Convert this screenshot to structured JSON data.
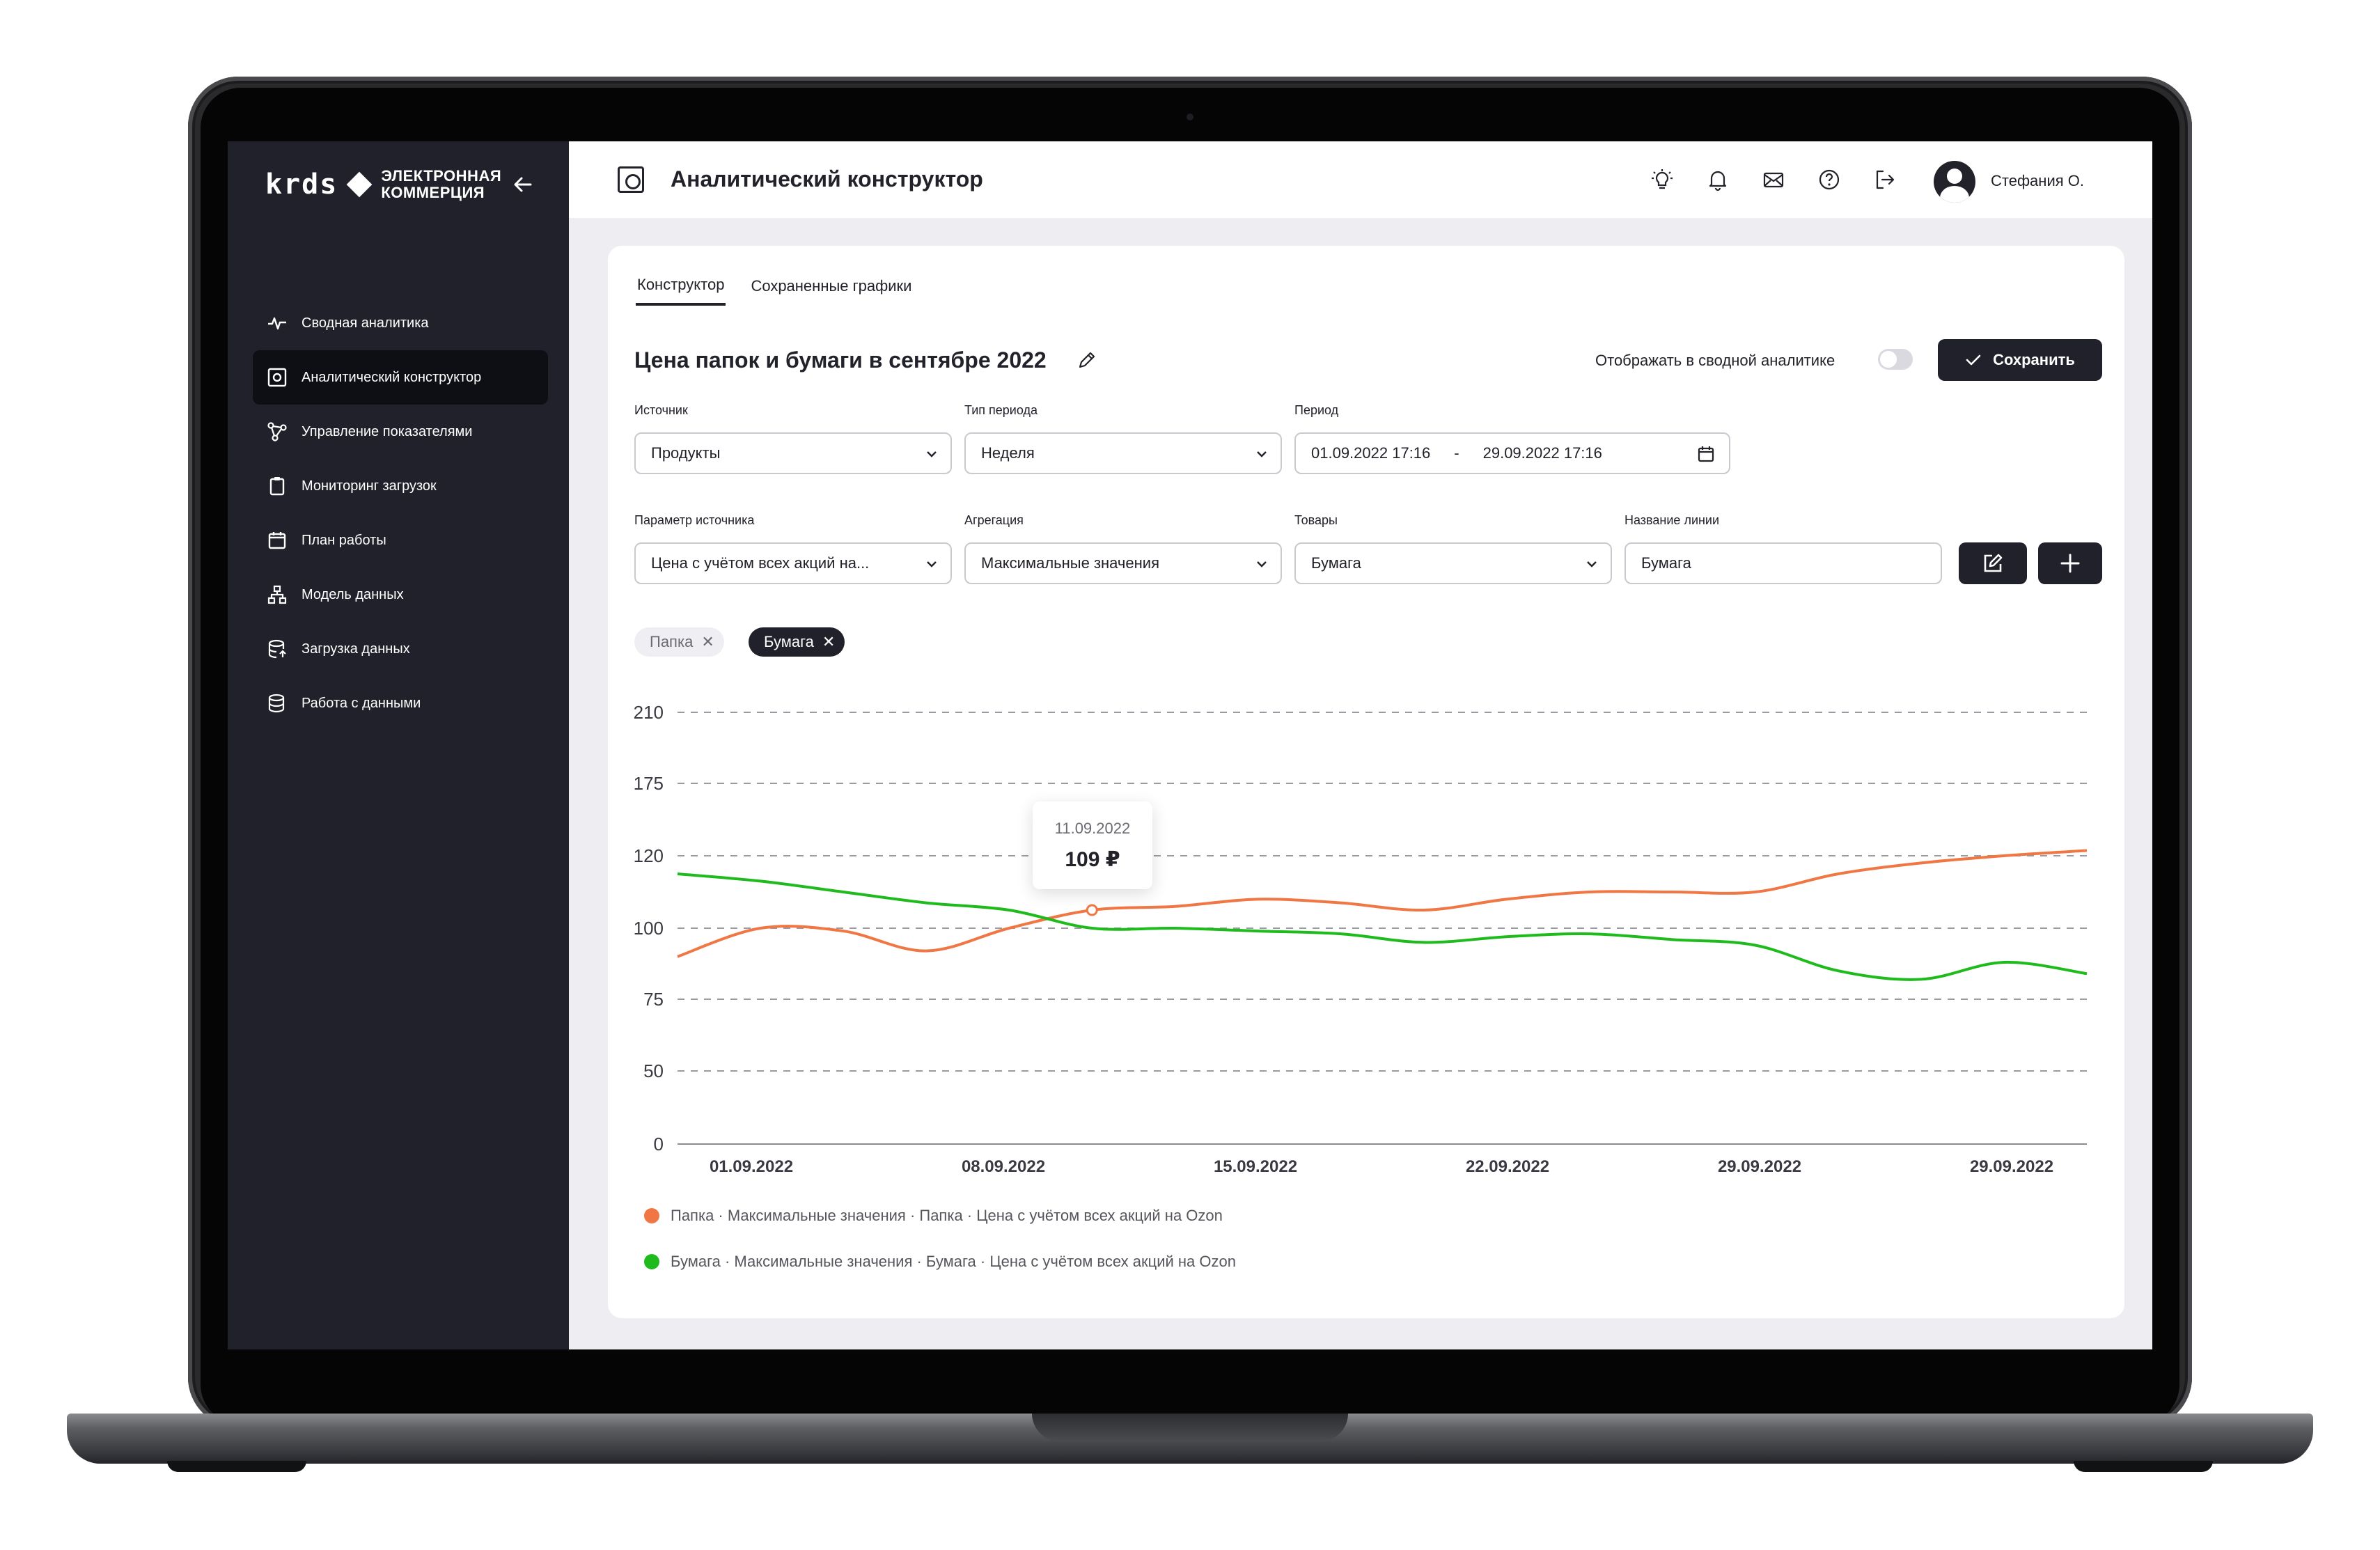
{
  "app": {
    "logo_mark": "krds",
    "logo_line1": "ЭЛЕКТРОННАЯ",
    "logo_line2": "КОММЕРЦИЯ"
  },
  "sidebar": {
    "items": [
      {
        "label": "Сводная аналитика",
        "icon": "activity-icon"
      },
      {
        "label": "Аналитический конструктор",
        "icon": "constructor-icon",
        "active": true
      },
      {
        "label": "Управление показателями",
        "icon": "nodes-icon"
      },
      {
        "label": "Мониторинг загрузок",
        "icon": "clipboard-icon"
      },
      {
        "label": "План работы",
        "icon": "calendar-icon"
      },
      {
        "label": "Модель данных",
        "icon": "hierarchy-icon"
      },
      {
        "label": "Загрузка данных",
        "icon": "database-upload-icon"
      },
      {
        "label": "Работа с данными",
        "icon": "database-icon"
      }
    ]
  },
  "header": {
    "title": "Аналитический конструктор",
    "icons": [
      "lightbulb-icon",
      "bell-icon",
      "mail-icon",
      "help-icon",
      "logout-icon"
    ],
    "user_name": "Стефания О."
  },
  "tabs": [
    {
      "label": "Конструктор",
      "active": true
    },
    {
      "label": "Сохраненные графики",
      "active": false
    }
  ],
  "editor": {
    "chart_title": "Цена папок и бумаги в сентябре 2022",
    "toggle_label": "Отображать в сводной аналитике",
    "toggle_on": false,
    "save_label": "Сохранить"
  },
  "filters": {
    "source": {
      "label": "Источник",
      "value": "Продукты"
    },
    "period_type": {
      "label": "Тип периода",
      "value": "Неделя"
    },
    "period": {
      "label": "Период",
      "from": "01.09.2022 17:16",
      "separator": "-",
      "to": "29.09.2022 17:16"
    },
    "source_param": {
      "label": "Параметр источника",
      "value": "Цена с учётом всех акций на..."
    },
    "aggregation": {
      "label": "Агрегация",
      "value": "Максимальные значения"
    },
    "goods": {
      "label": "Товары",
      "value": "Бумага"
    },
    "line_name": {
      "label": "Название линии",
      "value": "Бумага"
    }
  },
  "chips": [
    {
      "label": "Папка",
      "active": false
    },
    {
      "label": "Бумага",
      "active": true
    }
  ],
  "chart_data": {
    "type": "line",
    "title": "Цена папок и бумаги в сентябре 2022",
    "y_ticks": [
      0,
      50,
      75,
      100,
      120,
      175,
      210
    ],
    "y_tick_labels": [
      "0",
      "50",
      "75",
      "100",
      "120",
      "175",
      "210"
    ],
    "x_tick_labels": [
      "01.09.2022",
      "08.09.2022",
      "15.09.2022",
      "22.09.2022",
      "29.09.2022",
      "29.09.2022"
    ],
    "grid": true,
    "series": [
      {
        "name": "Папка · Максимальные значения · Папка · Цена с учётом всех акций на Ozon",
        "color": "#f07643",
        "values": [
          90,
          100,
          99,
          92,
          100,
          105,
          106,
          108,
          107,
          105,
          108,
          110,
          110,
          110,
          115,
          118,
          120,
          124
        ]
      },
      {
        "name": "Бумага · Максимальные значения · Бумага · Цена с учётом всех акций на Ozon",
        "color": "#1fbb1c",
        "values": [
          115,
          113,
          110,
          107,
          105,
          100,
          100,
          99,
          98,
          95,
          97,
          98,
          96,
          94,
          85,
          82,
          88,
          84
        ]
      }
    ],
    "tooltip": {
      "date": "11.09.2022",
      "value": "109 ₽"
    },
    "legend_position": "bottom-left"
  }
}
